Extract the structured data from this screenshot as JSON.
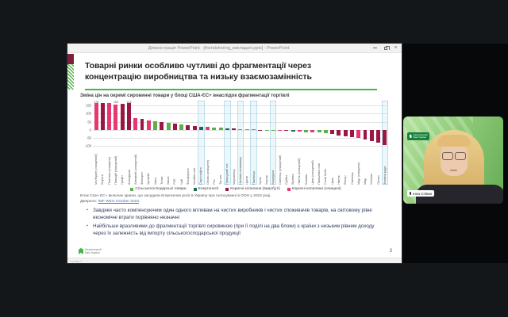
{
  "window": {
    "title": "Демонстрація PowerPoint - [friendshoring_викладачі.pptx] - PowerPoint",
    "status": "Слайд 3"
  },
  "slide": {
    "title_lines": [
      "Товарні ринки особливо чутливі до фрагментації через",
      "концентрацію виробництва та низьку взаємозамінність"
    ],
    "note": "Блок США-ЄС+ включає країни, що засудили вторгнення росії в Україну при голосуванні в ООН у 2022 році.",
    "source_prefix": "Джерело:",
    "source_link": "IMF WEO October 2023",
    "bullets": [
      "Завдяки часто компенсуючим один одного впливам на чистих виробників і чистих споживачів товарів, на світовому рівні економічні втрати порівняно незначні",
      "Найбільше вразливими до фрагментації торгівлі сировиною (при її поділі на два блоки) є країни з низьким рівнем доходу через їх залежність від імпорту сільськогосподарської продукції"
    ],
    "logo_line1": "Національний",
    "logo_line2": "банк України",
    "page_number": "3"
  },
  "chart_data": {
    "type": "bar",
    "title": "Зміна цін на окремі сировинні товари у блоці США-ЄС+ внаслідок фрагментації торгівлі",
    "ylabel": "",
    "xlabel": "",
    "ylim": [
      -100,
      150
    ],
    "yticks": [
      150,
      100,
      50,
      0,
      -50,
      -100
    ],
    "clip_value": 163,
    "grid": true,
    "legend_position": "bottom",
    "colors": {
      "agri": "#5fae4b",
      "energy": "#1d6b4f",
      "mined": "#9b1743",
      "refined": "#e8376e"
    },
    "highlight_color": "#8fc6dc",
    "legend": [
      {
        "key": "agri",
        "label": "Сільськогосподарські товари"
      },
      {
        "key": "energy",
        "label": "Енергоносії"
      },
      {
        "key": "mined",
        "label": "Корисні копалини (видобуті)"
      },
      {
        "key": "refined",
        "label": "Корисні копалини (очищені)"
      }
    ],
    "bars": [
      {
        "name": "Молібден (очищений)",
        "value": 178,
        "cat": "refined",
        "label": "178"
      },
      {
        "name": "Барити",
        "value": 168,
        "cat": "mined"
      },
      {
        "name": "Платина (очищена)",
        "value": 166,
        "cat": "refined"
      },
      {
        "name": "Паладій (очищений)",
        "value": 155,
        "cat": "refined",
        "label": "155"
      },
      {
        "name": "Графіт",
        "value": 158,
        "cat": "mined"
      },
      {
        "name": "Вольфрам",
        "value": 163,
        "cat": "mined",
        "label": "163"
      },
      {
        "name": "Алюміній (очищений)",
        "value": 72,
        "cat": "refined"
      },
      {
        "name": "Флюорит",
        "value": 66,
        "cat": "mined"
      },
      {
        "name": "Кремній",
        "value": 58,
        "cat": "refined"
      },
      {
        "name": "Кава",
        "value": 54,
        "cat": "agri"
      },
      {
        "name": "Титан",
        "value": 48,
        "cat": "mined"
      },
      {
        "name": "Какао",
        "value": 44,
        "cat": "agri"
      },
      {
        "name": "РЗЕ",
        "value": 40,
        "cat": "mined"
      },
      {
        "name": "Чай",
        "value": 34,
        "cat": "agri"
      },
      {
        "name": "Фосфорити",
        "value": 28,
        "cat": "mined"
      },
      {
        "name": "Калійні солі",
        "value": 24,
        "cat": "mined"
      },
      {
        "name": "Сира нафта",
        "value": 20,
        "cat": "energy",
        "highlight": true
      },
      {
        "name": "Олово (очищене)",
        "value": 17,
        "cat": "refined"
      },
      {
        "name": "Рис",
        "value": 14,
        "cat": "agri"
      },
      {
        "name": "Тютюн",
        "value": 12,
        "cat": "agri"
      },
      {
        "name": "Природний газ",
        "value": 10,
        "cat": "energy",
        "highlight": true
      },
      {
        "name": "Марганець",
        "value": 8,
        "cat": "mined"
      },
      {
        "name": "Насіння соняшнику",
        "value": 6,
        "cat": "agri",
        "highlight": true
      },
      {
        "name": "Цукор",
        "value": 4,
        "cat": "agri"
      },
      {
        "name": "Пшениця",
        "value": 3,
        "cat": "agri",
        "highlight": true
      },
      {
        "name": "Хром",
        "value": -3,
        "cat": "mined"
      },
      {
        "name": "Каучук",
        "value": -4,
        "cat": "agri"
      },
      {
        "name": "Кукурудза",
        "value": -5,
        "cat": "agri",
        "highlight": true
      },
      {
        "name": "Свинець (очищений)",
        "value": -7,
        "cat": "refined"
      },
      {
        "name": "Срібло",
        "value": -8,
        "cat": "mined"
      },
      {
        "name": "Вугілля",
        "value": -10,
        "cat": "energy"
      },
      {
        "name": "Нікель (очищений)",
        "value": -12,
        "cat": "refined"
      },
      {
        "name": "Банани",
        "value": -14,
        "cat": "agri"
      },
      {
        "name": "Цинк (очищений)",
        "value": -16,
        "cat": "refined"
      },
      {
        "name": "Пальмова олія",
        "value": -18,
        "cat": "agri"
      },
      {
        "name": "Соєві боби",
        "value": -22,
        "cat": "agri"
      },
      {
        "name": "Цинк",
        "value": -28,
        "cat": "mined"
      },
      {
        "name": "Нікель",
        "value": -34,
        "cat": "mined"
      },
      {
        "name": "Вісмут",
        "value": -38,
        "cat": "mined"
      },
      {
        "name": "Свинець",
        "value": -44,
        "cat": "mined"
      },
      {
        "name": "Мідь (очищена)",
        "value": -50,
        "cat": "refined"
      },
      {
        "name": "Мідь",
        "value": -58,
        "cat": "mined"
      },
      {
        "name": "Кобальт",
        "value": -68,
        "cat": "mined"
      },
      {
        "name": "Олово",
        "value": -78,
        "cat": "mined"
      },
      {
        "name": "Залізна руда",
        "value": -95,
        "cat": "mined",
        "highlight": true
      }
    ]
  },
  "webcam": {
    "name_tag": "Інна Співак",
    "badge_line1": "Національний",
    "badge_line2": "банк України"
  }
}
